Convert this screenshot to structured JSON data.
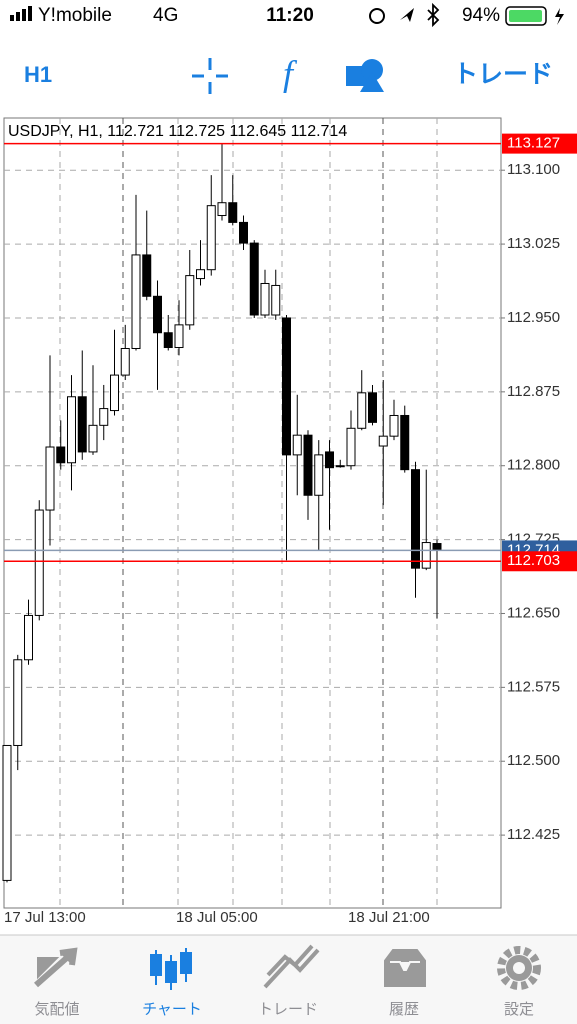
{
  "status_bar": {
    "carrier": "Y!mobile",
    "network": "4G",
    "time": "11:20",
    "battery": "94%"
  },
  "toolbar": {
    "timeframe": "H1",
    "trade": "トレード"
  },
  "chart_data": {
    "type": "candlestick",
    "title": "USDJPY, H1, 112.721 112.725 112.645 112.714",
    "categories": [
      "17 Jul 13:00",
      null,
      null,
      null,
      null,
      null,
      null,
      null,
      null,
      null,
      null,
      null,
      null,
      null,
      null,
      null,
      "18 Jul 05:00",
      null,
      null,
      null,
      null,
      null,
      null,
      null,
      null,
      null,
      null,
      null,
      null,
      null,
      null,
      null,
      "18 Jul 21:00",
      null,
      null,
      null,
      null,
      null,
      null,
      null,
      null
    ],
    "open": [
      112.379,
      112.516,
      112.603,
      112.648,
      112.755,
      112.819,
      112.803,
      112.87,
      112.814,
      112.841,
      112.856,
      112.892,
      112.919,
      113.014,
      112.972,
      112.935,
      112.92,
      112.943,
      112.99,
      112.999,
      113.054,
      113.067,
      113.047,
      113.026,
      112.953,
      112.953,
      112.95,
      112.811,
      112.831,
      112.77,
      112.814,
      112.8,
      112.8,
      112.838,
      112.874,
      112.82,
      112.83,
      112.851,
      112.796,
      112.696,
      112.721
    ],
    "high": [
      112.516,
      112.608,
      112.664,
      112.765,
      112.912,
      112.846,
      112.892,
      112.917,
      112.902,
      112.882,
      112.938,
      112.943,
      113.075,
      113.059,
      112.988,
      112.953,
      112.968,
      113.019,
      113.029,
      113.095,
      113.127,
      113.095,
      113.054,
      113.029,
      112.999,
      112.999,
      112.953,
      112.872,
      112.836,
      112.826,
      112.826,
      112.806,
      112.856,
      112.897,
      112.882,
      112.887,
      112.867,
      112.861,
      112.804,
      112.796,
      112.725
    ],
    "low": [
      112.377,
      112.491,
      112.598,
      112.643,
      112.719,
      112.796,
      112.775,
      112.806,
      112.811,
      112.826,
      112.851,
      112.887,
      112.917,
      112.968,
      112.877,
      112.917,
      112.912,
      112.938,
      112.983,
      112.993,
      113.049,
      113.044,
      113.019,
      112.95,
      112.95,
      112.948,
      112.704,
      112.77,
      112.745,
      112.714,
      112.735,
      112.798,
      112.796,
      112.836,
      112.841,
      112.76,
      112.826,
      112.793,
      112.666,
      112.694,
      112.645
    ],
    "close": [
      112.516,
      112.603,
      112.648,
      112.755,
      112.819,
      112.803,
      112.87,
      112.814,
      112.841,
      112.858,
      112.892,
      112.919,
      113.014,
      112.972,
      112.935,
      112.92,
      112.943,
      112.993,
      112.999,
      113.064,
      113.067,
      113.047,
      113.026,
      112.953,
      112.985,
      112.983,
      112.811,
      112.831,
      112.77,
      112.811,
      112.798,
      112.8,
      112.838,
      112.874,
      112.844,
      112.83,
      112.851,
      112.796,
      112.696,
      112.722,
      112.714
    ],
    "up_color": "#ffffff",
    "down_color": "#000000",
    "ylim": [
      112.351,
      113.153
    ],
    "yticks": [
      {
        "value": 113.1,
        "label": "113.100"
      },
      113.025,
      {
        "value": 112.95,
        "label": "112.950"
      },
      112.875,
      {
        "value": 112.8,
        "label": "112.800"
      },
      112.725,
      {
        "value": 112.65,
        "label": "112.650"
      },
      112.575,
      {
        "value": 112.5,
        "label": "112.500"
      },
      112.425
    ],
    "grid": true,
    "levels": [
      {
        "value": 113.127,
        "color": "#ff0000",
        "label_color": "#ff0000"
      },
      {
        "value": 112.714,
        "color": "#8a9bb3",
        "label_color": "#2f5f9e"
      },
      {
        "value": 112.703,
        "color": "#ff0000",
        "label_color": "#ff0000"
      }
    ]
  },
  "tab_bar": {
    "items": [
      "気配値",
      "チャート",
      "トレード",
      "履歴",
      "設定"
    ],
    "active": 1
  }
}
